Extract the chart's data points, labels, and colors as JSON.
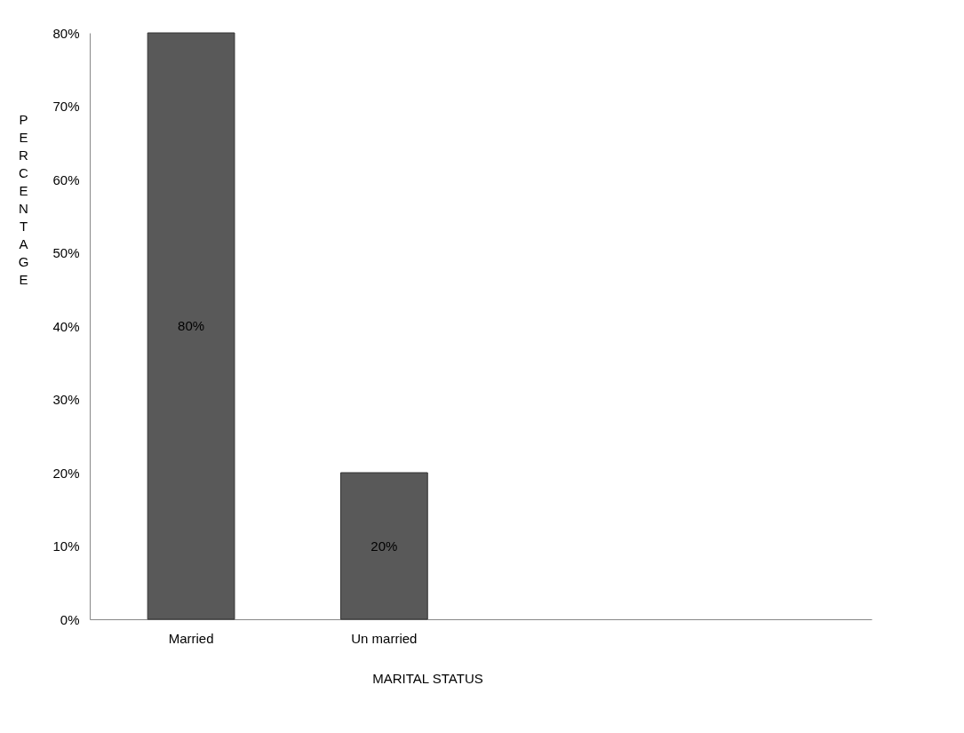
{
  "chart_data": {
    "type": "bar",
    "xlabel": "MARITAL STATUS",
    "ylabel": "PERCENTAGE",
    "categories": [
      "Married",
      "Un married",
      null,
      null
    ],
    "values": [
      80,
      20,
      null,
      null
    ],
    "color": "#595959",
    "value_labels": [
      "80%",
      "20%",
      null,
      null
    ],
    "ylim": [
      0,
      80
    ],
    "yticks": [
      {
        "value": 0,
        "label": "0%"
      },
      {
        "value": 10,
        "label": "10%"
      },
      {
        "value": 20,
        "label": "20%"
      },
      {
        "value": 30,
        "label": "30%"
      },
      {
        "value": 40,
        "label": "40%"
      },
      {
        "value": 50,
        "label": "50%"
      },
      {
        "value": 60,
        "label": "60%"
      },
      {
        "value": 70,
        "label": "70%"
      },
      {
        "value": 80,
        "label": "80%"
      }
    ],
    "grid": false
  }
}
